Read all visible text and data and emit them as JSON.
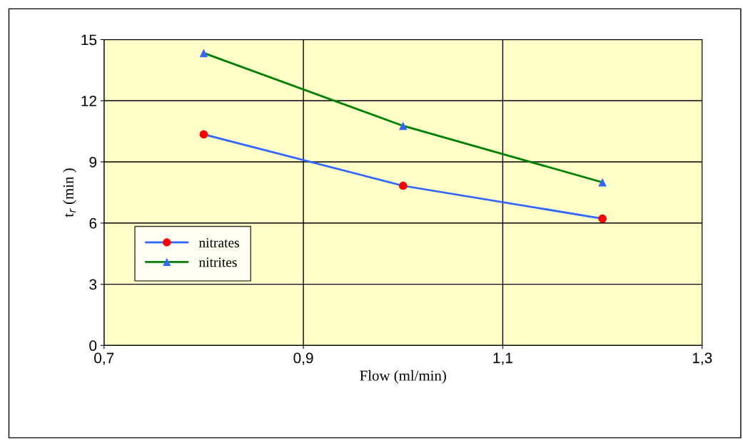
{
  "chart_data": {
    "type": "line",
    "xlabel": "Flow (ml/min)",
    "ylabel": "t$_{r}$ (min )",
    "x": [
      0.8,
      1.0,
      1.2
    ],
    "series": [
      {
        "name": "nitrates",
        "color": "#3366ff",
        "colors": [
          "#ff0000",
          "#ff0000",
          "#ff0000"
        ],
        "marker": "circle",
        "values": [
          10.35,
          7.83,
          6.22
        ]
      },
      {
        "name": "nitrites",
        "color": "#008000",
        "colors": [
          "#3366ff",
          "#3366ff",
          "#3366ff"
        ],
        "marker": "triangle",
        "values": [
          14.34,
          10.77,
          8.0
        ]
      }
    ],
    "xlim": [
      0.7,
      1.3
    ],
    "xticks": [
      {
        "value": 0.7,
        "label": "0,7"
      },
      {
        "value": 0.9,
        "label": "0,9"
      },
      {
        "value": 1.1,
        "label": "1,1"
      },
      {
        "value": 1.3,
        "label": "1,3"
      }
    ],
    "ylim": [
      0,
      15
    ],
    "yticks": [
      0,
      3,
      6,
      9,
      12,
      15
    ],
    "grid": true,
    "legend": "left",
    "line_style": "solid"
  }
}
